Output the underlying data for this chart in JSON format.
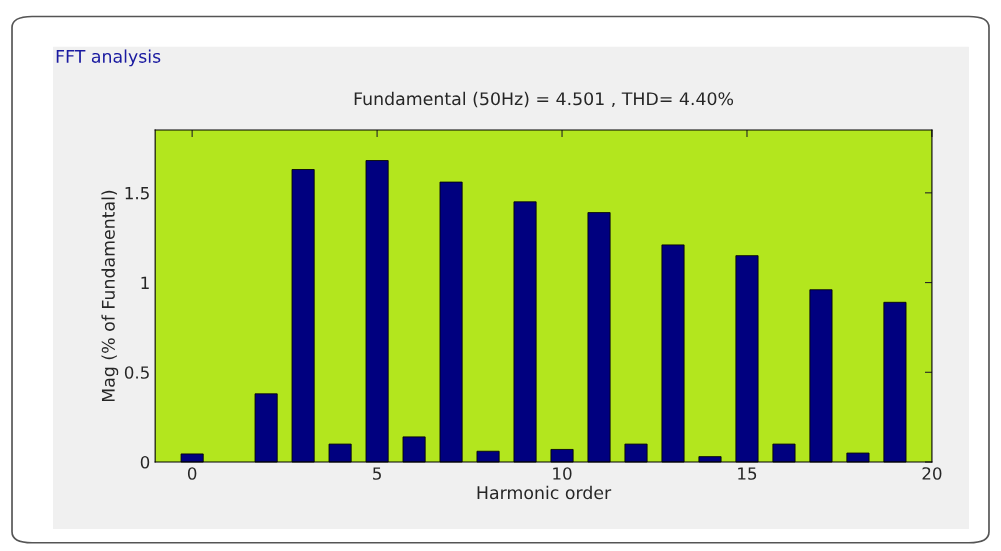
{
  "chart_data": {
    "type": "bar",
    "title": "Fundamental (50Hz) = 4.501 , THD= 4.40%",
    "annotations": [
      "FFT analysis"
    ],
    "xlabel": "Harmonic order",
    "ylabel": "Mag (% of Fundamental)",
    "x": [
      0,
      1,
      2,
      3,
      4,
      5,
      6,
      7,
      8,
      9,
      10,
      11,
      12,
      13,
      14,
      15,
      16,
      17,
      18,
      19
    ],
    "values": [
      0.045,
      null,
      0.38,
      1.63,
      0.1,
      1.68,
      0.14,
      1.56,
      0.06,
      1.45,
      0.07,
      1.39,
      0.1,
      1.21,
      0.03,
      1.15,
      0.1,
      0.96,
      0.05,
      0.89
    ],
    "color": "#00007f",
    "xlim": [
      -1,
      20
    ],
    "xticks": [
      0,
      5,
      10,
      15,
      20
    ],
    "ylim": [
      0,
      1.85
    ],
    "yticks": [
      0,
      0.5,
      1,
      1.5
    ],
    "grid": false,
    "legend": false
  }
}
